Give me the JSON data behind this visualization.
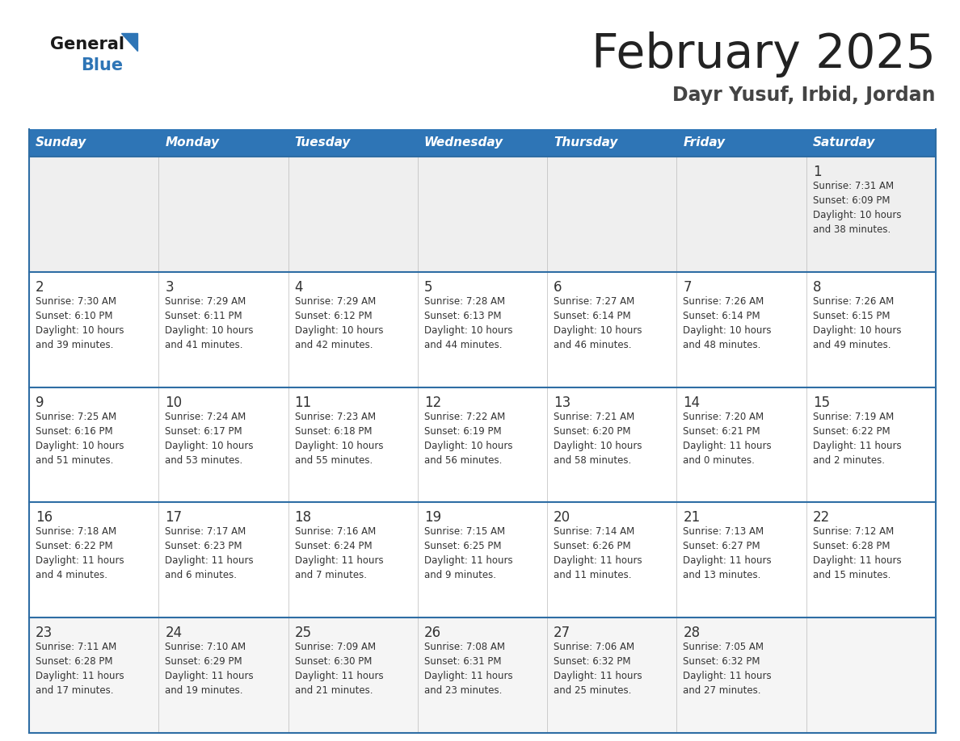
{
  "title": "February 2025",
  "subtitle": "Dayr Yusuf, Irbid, Jordan",
  "days_of_week": [
    "Sunday",
    "Monday",
    "Tuesday",
    "Wednesday",
    "Thursday",
    "Friday",
    "Saturday"
  ],
  "header_bg": "#2E75B6",
  "header_text": "#FFFFFF",
  "row_bg_first": "#EFEFEF",
  "row_bg_normal": "#FFFFFF",
  "row_bg_last": "#F5F5F5",
  "separator_color": "#2E6DA4",
  "text_color": "#333333",
  "title_color": "#222222",
  "subtitle_color": "#444444",
  "calendar_data": [
    [
      {
        "day": null,
        "sunrise": null,
        "sunset": null,
        "daylight": null
      },
      {
        "day": null,
        "sunrise": null,
        "sunset": null,
        "daylight": null
      },
      {
        "day": null,
        "sunrise": null,
        "sunset": null,
        "daylight": null
      },
      {
        "day": null,
        "sunrise": null,
        "sunset": null,
        "daylight": null
      },
      {
        "day": null,
        "sunrise": null,
        "sunset": null,
        "daylight": null
      },
      {
        "day": null,
        "sunrise": null,
        "sunset": null,
        "daylight": null
      },
      {
        "day": 1,
        "sunrise": "7:31 AM",
        "sunset": "6:09 PM",
        "daylight": "10 hours\nand 38 minutes."
      }
    ],
    [
      {
        "day": 2,
        "sunrise": "7:30 AM",
        "sunset": "6:10 PM",
        "daylight": "10 hours\nand 39 minutes."
      },
      {
        "day": 3,
        "sunrise": "7:29 AM",
        "sunset": "6:11 PM",
        "daylight": "10 hours\nand 41 minutes."
      },
      {
        "day": 4,
        "sunrise": "7:29 AM",
        "sunset": "6:12 PM",
        "daylight": "10 hours\nand 42 minutes."
      },
      {
        "day": 5,
        "sunrise": "7:28 AM",
        "sunset": "6:13 PM",
        "daylight": "10 hours\nand 44 minutes."
      },
      {
        "day": 6,
        "sunrise": "7:27 AM",
        "sunset": "6:14 PM",
        "daylight": "10 hours\nand 46 minutes."
      },
      {
        "day": 7,
        "sunrise": "7:26 AM",
        "sunset": "6:14 PM",
        "daylight": "10 hours\nand 48 minutes."
      },
      {
        "day": 8,
        "sunrise": "7:26 AM",
        "sunset": "6:15 PM",
        "daylight": "10 hours\nand 49 minutes."
      }
    ],
    [
      {
        "day": 9,
        "sunrise": "7:25 AM",
        "sunset": "6:16 PM",
        "daylight": "10 hours\nand 51 minutes."
      },
      {
        "day": 10,
        "sunrise": "7:24 AM",
        "sunset": "6:17 PM",
        "daylight": "10 hours\nand 53 minutes."
      },
      {
        "day": 11,
        "sunrise": "7:23 AM",
        "sunset": "6:18 PM",
        "daylight": "10 hours\nand 55 minutes."
      },
      {
        "day": 12,
        "sunrise": "7:22 AM",
        "sunset": "6:19 PM",
        "daylight": "10 hours\nand 56 minutes."
      },
      {
        "day": 13,
        "sunrise": "7:21 AM",
        "sunset": "6:20 PM",
        "daylight": "10 hours\nand 58 minutes."
      },
      {
        "day": 14,
        "sunrise": "7:20 AM",
        "sunset": "6:21 PM",
        "daylight": "11 hours\nand 0 minutes."
      },
      {
        "day": 15,
        "sunrise": "7:19 AM",
        "sunset": "6:22 PM",
        "daylight": "11 hours\nand 2 minutes."
      }
    ],
    [
      {
        "day": 16,
        "sunrise": "7:18 AM",
        "sunset": "6:22 PM",
        "daylight": "11 hours\nand 4 minutes."
      },
      {
        "day": 17,
        "sunrise": "7:17 AM",
        "sunset": "6:23 PM",
        "daylight": "11 hours\nand 6 minutes."
      },
      {
        "day": 18,
        "sunrise": "7:16 AM",
        "sunset": "6:24 PM",
        "daylight": "11 hours\nand 7 minutes."
      },
      {
        "day": 19,
        "sunrise": "7:15 AM",
        "sunset": "6:25 PM",
        "daylight": "11 hours\nand 9 minutes."
      },
      {
        "day": 20,
        "sunrise": "7:14 AM",
        "sunset": "6:26 PM",
        "daylight": "11 hours\nand 11 minutes."
      },
      {
        "day": 21,
        "sunrise": "7:13 AM",
        "sunset": "6:27 PM",
        "daylight": "11 hours\nand 13 minutes."
      },
      {
        "day": 22,
        "sunrise": "7:12 AM",
        "sunset": "6:28 PM",
        "daylight": "11 hours\nand 15 minutes."
      }
    ],
    [
      {
        "day": 23,
        "sunrise": "7:11 AM",
        "sunset": "6:28 PM",
        "daylight": "11 hours\nand 17 minutes."
      },
      {
        "day": 24,
        "sunrise": "7:10 AM",
        "sunset": "6:29 PM",
        "daylight": "11 hours\nand 19 minutes."
      },
      {
        "day": 25,
        "sunrise": "7:09 AM",
        "sunset": "6:30 PM",
        "daylight": "11 hours\nand 21 minutes."
      },
      {
        "day": 26,
        "sunrise": "7:08 AM",
        "sunset": "6:31 PM",
        "daylight": "11 hours\nand 23 minutes."
      },
      {
        "day": 27,
        "sunrise": "7:06 AM",
        "sunset": "6:32 PM",
        "daylight": "11 hours\nand 25 minutes."
      },
      {
        "day": 28,
        "sunrise": "7:05 AM",
        "sunset": "6:32 PM",
        "daylight": "11 hours\nand 27 minutes."
      },
      {
        "day": null,
        "sunrise": null,
        "sunset": null,
        "daylight": null
      }
    ]
  ]
}
